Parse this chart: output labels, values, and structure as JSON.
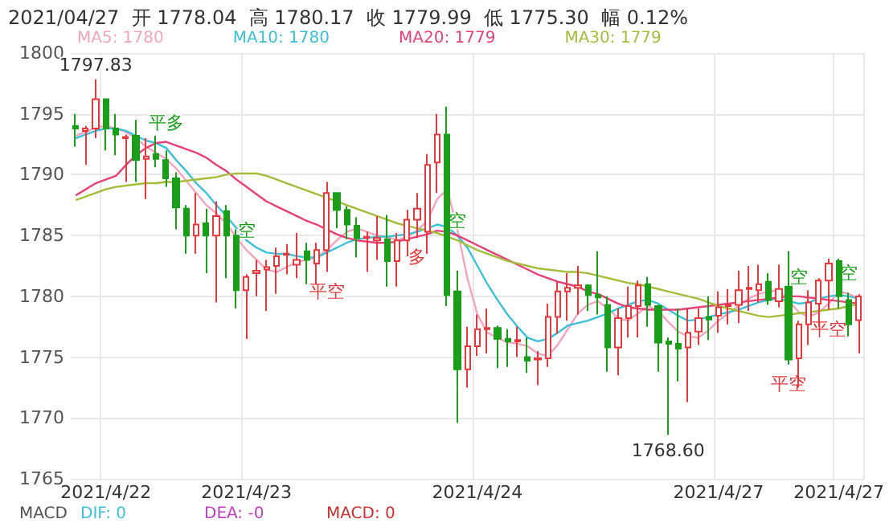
{
  "chart_data": {
    "type": "candlestick",
    "title": "2021/04/27  开 1778.04  高 1780.17  收 1779.99  低 1775.30  幅 0.12%",
    "categories": [
      null,
      null,
      null,
      "2021/4/22",
      null,
      null,
      null,
      null,
      null,
      null,
      null,
      null,
      null,
      null,
      null,
      null,
      null,
      "2021/4/23",
      null,
      null,
      null,
      null,
      null,
      null,
      null,
      null,
      null,
      null,
      null,
      null,
      null,
      null,
      null,
      null,
      null,
      null,
      null,
      null,
      null,
      null,
      "2021/4/24",
      null,
      null,
      null,
      null,
      null,
      null,
      null,
      null,
      null,
      null,
      null,
      null,
      null,
      null,
      null,
      null,
      null,
      null,
      null,
      null,
      null,
      null,
      null,
      "2021/4/27",
      null,
      null,
      null,
      null,
      null,
      null,
      null,
      null,
      null,
      null,
      null,
      "2021/4/27",
      null,
      null
    ],
    "ohlc": [
      [
        1794.0,
        1795.0,
        1792.3,
        1793.8
      ],
      [
        1793.6,
        1794.0,
        1790.8,
        1793.8
      ],
      [
        1793.8,
        1797.83,
        1793.0,
        1796.2
      ],
      [
        1796.2,
        1796.2,
        1792.0,
        1793.8
      ],
      [
        1793.8,
        1795.0,
        1791.6,
        1793.3
      ],
      [
        1793.0,
        1793.3,
        1789.4,
        1793.1
      ],
      [
        1793.2,
        1794.5,
        1789.4,
        1791.2
      ],
      [
        1791.3,
        1793.0,
        1788.0,
        1791.5
      ],
      [
        1791.7,
        1793.2,
        1790.6,
        1791.3
      ],
      [
        1791.2,
        1792.0,
        1789.0,
        1789.7
      ],
      [
        1789.7,
        1790.2,
        1785.5,
        1787.3
      ],
      [
        1787.2,
        1787.5,
        1783.5,
        1785.0
      ],
      [
        1785.0,
        1788.5,
        1783.5,
        1785.9
      ],
      [
        1786.0,
        1787.2,
        1781.9,
        1785.0
      ],
      [
        1785.0,
        1787.8,
        1779.5,
        1786.6
      ],
      [
        1787.0,
        1787.5,
        1781.5,
        1785.0
      ],
      [
        1785.0,
        1785.5,
        1779.0,
        1780.5
      ],
      [
        1780.5,
        1781.8,
        1776.5,
        1781.6
      ],
      [
        1781.9,
        1783.0,
        1780.0,
        1782.1
      ],
      [
        1782.2,
        1783.0,
        1778.8,
        1782.4
      ],
      [
        1782.5,
        1784.0,
        1780.2,
        1783.3
      ],
      [
        1783.4,
        1784.3,
        1781.8,
        1783.5
      ],
      [
        1782.6,
        1785.2,
        1781.5,
        1783.0
      ],
      [
        1783.7,
        1784.4,
        1781.0,
        1783.0
      ],
      [
        1782.7,
        1784.4,
        1781.0,
        1783.8
      ],
      [
        1783.8,
        1789.4,
        1782.0,
        1788.5
      ],
      [
        1788.5,
        1788.5,
        1785.6,
        1787.1
      ],
      [
        1787.1,
        1787.4,
        1784.7,
        1785.9
      ],
      [
        1785.8,
        1786.5,
        1783.2,
        1784.8
      ],
      [
        1784.8,
        1785.3,
        1782.0,
        1784.9
      ],
      [
        1784.6,
        1786.6,
        1783.0,
        1784.8
      ],
      [
        1784.7,
        1786.7,
        1780.8,
        1782.9
      ],
      [
        1782.9,
        1785.2,
        1780.8,
        1784.6
      ],
      [
        1784.6,
        1787.1,
        1783.3,
        1786.3
      ],
      [
        1786.3,
        1788.5,
        1784.8,
        1787.2
      ],
      [
        1785.3,
        1791.7,
        1783.5,
        1790.8
      ],
      [
        1791.0,
        1795.0,
        1788.5,
        1793.3
      ],
      [
        1793.3,
        1795.6,
        1779.2,
        1780.1
      ],
      [
        1780.4,
        1782.1,
        1769.6,
        1774.0
      ],
      [
        1774.0,
        1777.5,
        1772.5,
        1775.9
      ],
      [
        1775.9,
        1778.5,
        1775.1,
        1777.3
      ],
      [
        1777.3,
        1779.0,
        1775.3,
        1777.4
      ],
      [
        1777.4,
        1777.6,
        1774.1,
        1776.5
      ],
      [
        1776.5,
        1777.3,
        1774.2,
        1776.3
      ],
      [
        1776.3,
        1777.5,
        1775.0,
        1776.4
      ],
      [
        1775.0,
        1776.6,
        1773.7,
        1774.7
      ],
      [
        1774.8,
        1775.5,
        1772.7,
        1774.9
      ],
      [
        1774.9,
        1779.4,
        1774.2,
        1778.3
      ],
      [
        1778.3,
        1781.2,
        1776.9,
        1780.4
      ],
      [
        1780.4,
        1781.9,
        1778.0,
        1780.7
      ],
      [
        1780.7,
        1782.5,
        1778.5,
        1780.9
      ],
      [
        1780.9,
        1781.0,
        1778.8,
        1780.1
      ],
      [
        1780.1,
        1783.7,
        1778.5,
        1779.9
      ],
      [
        1779.3,
        1780.0,
        1773.8,
        1775.8
      ],
      [
        1775.8,
        1779.0,
        1773.5,
        1778.2
      ],
      [
        1778.2,
        1780.8,
        1776.6,
        1779.2
      ],
      [
        1779.2,
        1781.3,
        1776.6,
        1780.9
      ],
      [
        1781.0,
        1781.6,
        1777.5,
        1779.3
      ],
      [
        1779.2,
        1779.3,
        1773.8,
        1776.2
      ],
      [
        1776.3,
        1776.6,
        1768.6,
        1776.1
      ],
      [
        1776.1,
        1779.0,
        1773.0,
        1775.7
      ],
      [
        1775.8,
        1779.0,
        1771.3,
        1777.0
      ],
      [
        1777.1,
        1779.0,
        1776.0,
        1778.2
      ],
      [
        1778.3,
        1780.0,
        1776.4,
        1778.1
      ],
      [
        1778.4,
        1780.4,
        1777.0,
        1779.1
      ],
      [
        1779.2,
        1780.6,
        1777.7,
        1779.3
      ],
      [
        1779.3,
        1782.1,
        1777.8,
        1780.5
      ],
      [
        1780.6,
        1782.5,
        1778.8,
        1780.7
      ],
      [
        1780.5,
        1782.6,
        1779.5,
        1781.0
      ],
      [
        1781.2,
        1781.9,
        1779.3,
        1779.7
      ],
      [
        1779.6,
        1782.6,
        1779.1,
        1780.6
      ],
      [
        1780.8,
        1783.7,
        1774.4,
        1774.8
      ],
      [
        1774.9,
        1778.0,
        1772.5,
        1777.7
      ],
      [
        1777.7,
        1780.5,
        1776.0,
        1779.5
      ],
      [
        1779.4,
        1781.5,
        1777.5,
        1781.3
      ],
      [
        1781.3,
        1783.1,
        1778.9,
        1782.7
      ],
      [
        1782.9,
        1783.1,
        1779.0,
        1780.0
      ],
      [
        1779.7,
        1780.3,
        1776.7,
        1777.7
      ],
      [
        1778.04,
        1780.17,
        1775.3,
        1779.99
      ]
    ],
    "series": [
      {
        "type": "line",
        "name": "MA5: 1780",
        "color": "#f4a6c0",
        "values": [
          1793.2,
          1793.5,
          1793.9,
          1794.0,
          1793.8,
          1793.5,
          1793.0,
          1792.3,
          1791.8,
          1791.3,
          1790.5,
          1789.5,
          1788.5,
          1787.5,
          1786.8,
          1786.0,
          1784.8,
          1783.8,
          1783.0,
          1782.2,
          1782.0,
          1782.4,
          1782.8,
          1783.0,
          1783.2,
          1783.8,
          1784.6,
          1785.3,
          1785.6,
          1785.3,
          1785.0,
          1784.9,
          1784.6,
          1784.9,
          1785.4,
          1786.2,
          1788.0,
          1788.8,
          1785.5,
          1781.5,
          1778.5,
          1777.0,
          1776.6,
          1776.2,
          1776.1,
          1775.9,
          1775.3,
          1775.1,
          1776.0,
          1777.3,
          1778.6,
          1779.3,
          1779.6,
          1779.0,
          1778.2,
          1778.0,
          1778.6,
          1779.2,
          1778.8,
          1777.9,
          1777.1,
          1776.7,
          1776.6,
          1777.2,
          1778.0,
          1778.6,
          1779.2,
          1779.8,
          1780.2,
          1780.4,
          1780.5,
          1779.6,
          1778.7,
          1778.3,
          1778.7,
          1779.4,
          1780.4,
          1780.2,
          1779.8
        ]
      },
      {
        "type": "line",
        "name": "MA10: 1780",
        "color": "#3cc2d8",
        "values": [
          1793.0,
          1793.3,
          1793.6,
          1793.8,
          1793.8,
          1793.6,
          1793.2,
          1792.8,
          1792.6,
          1792.2,
          1791.2,
          1790.3,
          1789.3,
          1788.5,
          1787.5,
          1786.6,
          1785.6,
          1784.6,
          1784.0,
          1783.6,
          1783.5,
          1783.5,
          1783.3,
          1783.2,
          1783.2,
          1783.6,
          1784.0,
          1784.4,
          1784.7,
          1784.8,
          1784.9,
          1784.9,
          1785.0,
          1785.1,
          1785.3,
          1785.6,
          1785.9,
          1785.7,
          1785.0,
          1784.0,
          1782.5,
          1781.0,
          1779.7,
          1778.5,
          1777.5,
          1776.6,
          1776.3,
          1776.5,
          1777.0,
          1777.6,
          1777.8,
          1778.0,
          1778.3,
          1778.6,
          1779.0,
          1779.3,
          1779.6,
          1779.7,
          1779.4,
          1778.9,
          1778.4,
          1778.0,
          1778.1,
          1778.3,
          1778.5,
          1778.7,
          1778.9,
          1779.2,
          1779.5,
          1779.7,
          1779.8,
          1779.6,
          1779.4,
          1779.5,
          1779.8,
          1780.0,
          1780.1,
          1780.0,
          1779.8
        ]
      },
      {
        "type": "line",
        "name": "MA20: 1779",
        "color": "#e8417a",
        "values": [
          1788.3,
          1788.8,
          1789.3,
          1789.6,
          1789.9,
          1790.8,
          1791.6,
          1792.2,
          1792.6,
          1792.7,
          1792.4,
          1792.1,
          1791.8,
          1791.4,
          1790.8,
          1790.3,
          1789.6,
          1789.0,
          1788.4,
          1787.8,
          1787.4,
          1787.0,
          1786.6,
          1786.2,
          1785.9,
          1785.5,
          1785.1,
          1784.8,
          1784.6,
          1784.5,
          1784.4,
          1784.4,
          1784.5,
          1784.7,
          1784.9,
          1785.1,
          1785.4,
          1785.3,
          1785.0,
          1784.6,
          1784.2,
          1783.8,
          1783.4,
          1783.0,
          1782.6,
          1782.2,
          1781.8,
          1781.5,
          1781.2,
          1781.0,
          1780.8,
          1780.4,
          1780.2,
          1779.8,
          1779.4,
          1779.1,
          1779.0,
          1778.9,
          1778.9,
          1778.9,
          1778.9,
          1779.0,
          1779.1,
          1779.2,
          1779.3,
          1779.4,
          1779.5,
          1779.6,
          1779.7,
          1779.8,
          1779.9,
          1780.0,
          1780.0,
          1779.9,
          1779.8,
          1779.7,
          1779.6,
          1779.5,
          1779.4
        ]
      },
      {
        "type": "line",
        "name": "MA30: 1779",
        "color": "#a4be3c",
        "values": [
          1787.9,
          1788.2,
          1788.5,
          1788.8,
          1789.0,
          1789.1,
          1789.2,
          1789.3,
          1789.3,
          1789.4,
          1789.4,
          1789.5,
          1789.6,
          1789.7,
          1789.8,
          1790.0,
          1790.1,
          1790.1,
          1790.1,
          1789.9,
          1789.6,
          1789.3,
          1789.0,
          1788.7,
          1788.4,
          1788.1,
          1787.8,
          1787.5,
          1787.2,
          1786.9,
          1786.6,
          1786.3,
          1786.0,
          1785.8,
          1785.6,
          1785.4,
          1785.2,
          1784.9,
          1784.6,
          1784.2,
          1783.8,
          1783.5,
          1783.2,
          1782.9,
          1782.7,
          1782.5,
          1782.3,
          1782.2,
          1782.1,
          1782.0,
          1782.0,
          1781.9,
          1781.7,
          1781.5,
          1781.3,
          1781.1,
          1781.0,
          1780.8,
          1780.6,
          1780.4,
          1780.2,
          1780.0,
          1779.8,
          1779.5,
          1779.2,
          1779.0,
          1778.8,
          1778.6,
          1778.4,
          1778.3,
          1778.4,
          1778.5,
          1778.6,
          1778.7,
          1778.8,
          1778.9,
          1779.0,
          1779.2,
          1779.4
        ]
      }
    ],
    "ylim": [
      1765,
      1800
    ],
    "yticks": [
      1765,
      1770,
      1775,
      1780,
      1785,
      1790,
      1795,
      1800
    ],
    "grid": true,
    "legend": "top left",
    "marker": "none",
    "annotations": [
      {
        "text": "1797.83",
        "y": 1797.83
      },
      {
        "text": "1768.60",
        "y": 1768.6
      },
      {
        "text": "平多",
        "y": 1792.0
      },
      {
        "text": "空",
        "y": 1781.8
      },
      {
        "text": "平空",
        "y": 1782.0
      },
      {
        "text": "多",
        "y": 1784.8
      },
      {
        "text": "空",
        "y": 1782.1
      },
      {
        "text": "平空",
        "y": 1774.4
      },
      {
        "text": "空",
        "y": 1778.0
      },
      {
        "text": "平空",
        "y": 1778.9
      },
      {
        "text": "空",
        "y": 1780.3
      },
      "MACD",
      "DIF: 0",
      "DEA: -0",
      "MACD: 0"
    ]
  }
}
